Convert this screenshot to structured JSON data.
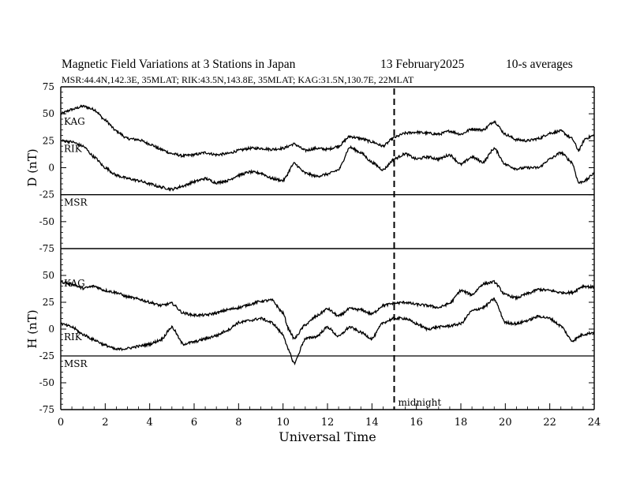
{
  "header": {
    "title": "Magnetic Field Variations at 3 Stations in Japan",
    "date": "13 February2025",
    "averaging": "10-s averages",
    "stations_line": "MSR:44.4N,142.3E, 35MLAT;  RIK:43.5N,143.8E, 35MLAT;  KAG:31.5N,130.7E, 22MLAT"
  },
  "chart_data": [
    {
      "type": "line",
      "panel": "D",
      "ylabel": "D (nT)",
      "ylim": [
        -75,
        75
      ],
      "yticks": [
        "75",
        "50",
        "25",
        "0",
        "-25",
        "-50",
        "-75"
      ],
      "xlim": [
        0,
        24
      ],
      "baselines": {
        "KAG": 50,
        "RIK": 25,
        "MSR": -25
      },
      "series": [
        {
          "name": "KAG",
          "x": [
            0,
            0.5,
            1,
            1.5,
            2,
            2.5,
            3,
            3.5,
            4,
            4.5,
            5,
            5.5,
            6,
            6.5,
            7,
            7.5,
            8,
            8.5,
            9,
            9.5,
            10,
            10.5,
            11,
            11.5,
            12,
            12.5,
            13,
            13.5,
            14,
            14.5,
            15,
            15.5,
            16,
            16.5,
            17,
            17.5,
            18,
            18.5,
            19,
            19.5,
            20,
            20.5,
            21,
            21.5,
            22,
            22.5,
            23,
            23.3,
            23.6,
            24
          ],
          "values": [
            50,
            54,
            57,
            54,
            44,
            34,
            27,
            26,
            22,
            17,
            13,
            11,
            12,
            14,
            12,
            13,
            16,
            18,
            18,
            17,
            18,
            22,
            16,
            18,
            17,
            20,
            29,
            27,
            24,
            20,
            28,
            32,
            33,
            32,
            31,
            34,
            31,
            36,
            35,
            43,
            31,
            26,
            25,
            27,
            32,
            34,
            27,
            16,
            27,
            30
          ]
        },
        {
          "name": "RIK",
          "x": [
            0,
            0.5,
            1,
            1.5,
            2,
            2.5,
            3,
            3.5,
            4,
            4.5,
            5,
            5.5,
            6,
            6.5,
            7,
            7.5,
            8,
            8.5,
            9,
            9.5,
            10,
            10.5,
            11,
            11.5,
            12,
            12.5,
            13,
            13.5,
            14,
            14.5,
            15,
            15.5,
            16,
            16.5,
            17,
            17.5,
            18,
            18.5,
            19,
            19.5,
            20,
            20.5,
            21,
            21.5,
            22,
            22.5,
            23,
            23.3,
            23.6,
            24
          ],
          "values": [
            25,
            24,
            20,
            10,
            0,
            -7,
            -10,
            -12,
            -15,
            -18,
            -20,
            -17,
            -13,
            -10,
            -14,
            -12,
            -7,
            -4,
            -5,
            -10,
            -12,
            4,
            -5,
            -8,
            -6,
            -2,
            19,
            14,
            5,
            -2,
            8,
            13,
            8,
            10,
            8,
            12,
            3,
            10,
            5,
            18,
            3,
            -1,
            0,
            0,
            8,
            14,
            5,
            -14,
            -12,
            -5
          ]
        },
        {
          "name": "MSR",
          "x": [
            0,
            24
          ],
          "values": [
            -25,
            -25
          ]
        }
      ]
    },
    {
      "type": "line",
      "panel": "H",
      "ylabel": "H (nT)",
      "ylim": [
        -75,
        75
      ],
      "yticks": [
        "50",
        "25",
        "0",
        "-25",
        "-50",
        "-75"
      ],
      "xlim": [
        0,
        24
      ],
      "xticks": [
        "0",
        "2",
        "4",
        "6",
        "8",
        "10",
        "12",
        "14",
        "16",
        "18",
        "20",
        "22",
        "24"
      ],
      "xlabel": "Universal Time",
      "baselines": {
        "KAG": 50,
        "RIK": 0,
        "MSR": -25
      },
      "series": [
        {
          "name": "KAG",
          "x": [
            0,
            0.5,
            1,
            1.5,
            2,
            2.5,
            3,
            3.5,
            4,
            4.5,
            5,
            5.5,
            6,
            6.5,
            7,
            7.5,
            8,
            8.5,
            9,
            9.5,
            10,
            10.25,
            10.5,
            11,
            11.5,
            12,
            12.5,
            13,
            13.5,
            14,
            14.5,
            15,
            15.5,
            16,
            16.5,
            17,
            17.5,
            18,
            18.5,
            19,
            19.5,
            20,
            20.5,
            21,
            21.5,
            22,
            22.5,
            23,
            23.5,
            24
          ],
          "values": [
            44,
            42,
            38,
            40,
            36,
            34,
            30,
            28,
            25,
            22,
            24,
            15,
            13,
            13,
            15,
            18,
            20,
            23,
            26,
            27,
            15,
            0,
            -9,
            4,
            12,
            19,
            12,
            19,
            18,
            14,
            22,
            24,
            25,
            23,
            22,
            20,
            24,
            36,
            32,
            42,
            44,
            32,
            29,
            33,
            37,
            36,
            34,
            34,
            40,
            39
          ]
        },
        {
          "name": "RIK",
          "x": [
            0,
            0.5,
            1,
            1.5,
            2,
            2.5,
            3,
            3.5,
            4,
            4.5,
            5,
            5.5,
            6,
            6.5,
            7,
            7.5,
            8,
            8.5,
            9,
            9.5,
            10,
            10.25,
            10.5,
            11,
            11.5,
            12,
            12.5,
            13,
            13.5,
            14,
            14.5,
            15,
            15.5,
            16,
            16.5,
            17,
            17.5,
            18,
            18.5,
            19,
            19.5,
            20,
            20.5,
            21,
            21.5,
            22,
            22.5,
            23,
            23.5,
            24
          ],
          "values": [
            5,
            2,
            -5,
            -10,
            -15,
            -19,
            -18,
            -16,
            -14,
            -10,
            2,
            -14,
            -12,
            -9,
            -6,
            -1,
            6,
            8,
            10,
            6,
            -5,
            -20,
            -32,
            -9,
            -7,
            2,
            -7,
            2,
            -3,
            -9,
            6,
            10,
            10,
            5,
            0,
            2,
            3,
            5,
            17,
            20,
            28,
            6,
            5,
            8,
            12,
            10,
            3,
            -11,
            -5,
            -3
          ]
        },
        {
          "name": "MSR",
          "x": [
            0,
            24
          ],
          "values": [
            -25,
            -25
          ]
        }
      ]
    }
  ],
  "annotation": {
    "midnight_label": "midnight",
    "midnight_x": 15
  },
  "colors": {
    "line": "#000000",
    "background": "#ffffff"
  }
}
